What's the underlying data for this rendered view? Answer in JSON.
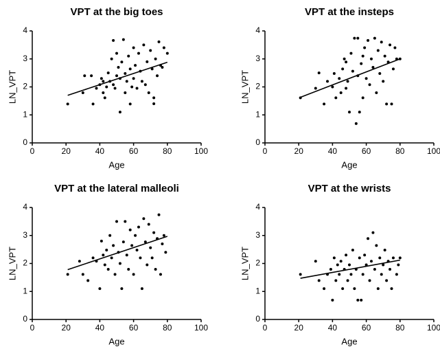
{
  "chart_data": [
    {
      "type": "scatter",
      "title": "VPT at the big toes",
      "xlabel": "Age",
      "ylabel": "LN_VPT",
      "xlim": [
        0,
        100
      ],
      "ylim": [
        0,
        4
      ],
      "xticks": [
        0,
        20,
        40,
        60,
        80,
        100
      ],
      "yticks": [
        0,
        1,
        2,
        3,
        4
      ],
      "color": "#000000",
      "series": [
        {
          "x": [
            21,
            30,
            31,
            35,
            36,
            38,
            40,
            41,
            42,
            42,
            43,
            44,
            45,
            46,
            47,
            48,
            48,
            49,
            50,
            50,
            51,
            52,
            52,
            53,
            54,
            55,
            55,
            56,
            57,
            58,
            58,
            59,
            60,
            60,
            61,
            62,
            63,
            64,
            65,
            66,
            67,
            68,
            69,
            70,
            71,
            72,
            73,
            74,
            75,
            76,
            77,
            78,
            80,
            72
          ],
          "values": [
            1.39,
            1.79,
            2.4,
            2.4,
            1.39,
            1.95,
            2.08,
            2.3,
            2.2,
            1.79,
            1.61,
            2.0,
            2.5,
            2.2,
            3.0,
            3.66,
            2.08,
            1.95,
            2.4,
            3.2,
            2.7,
            1.1,
            2.3,
            2.89,
            3.69,
            2.48,
            1.79,
            2.2,
            3.1,
            2.64,
            1.39,
            2.0,
            3.4,
            2.3,
            2.77,
            1.95,
            3.2,
            2.56,
            2.2,
            3.5,
            2.08,
            2.9,
            1.79,
            3.3,
            2.64,
            1.61,
            3.0,
            2.4,
            3.61,
            2.77,
            2.7,
            3.4,
            3.2,
            1.4
          ]
        }
      ],
      "fit": {
        "x": [
          21,
          80
        ],
        "values": [
          1.7,
          2.88
        ]
      }
    },
    {
      "type": "scatter",
      "title": "VPT at the insteps",
      "xlabel": "Age",
      "ylabel": "LN_VPT",
      "xlim": [
        0,
        100
      ],
      "ylim": [
        0,
        4
      ],
      "xticks": [
        0,
        20,
        40,
        60,
        80,
        100
      ],
      "yticks": [
        0,
        1,
        2,
        3,
        4
      ],
      "color": "#000000",
      "series": [
        {
          "x": [
            21,
            30,
            32,
            35,
            37,
            40,
            41,
            42,
            44,
            45,
            46,
            47,
            48,
            49,
            50,
            51,
            52,
            53,
            54,
            55,
            55,
            56,
            57,
            58,
            59,
            60,
            61,
            62,
            63,
            64,
            65,
            66,
            67,
            68,
            69,
            70,
            71,
            72,
            73,
            74,
            75,
            76,
            77,
            78,
            80,
            58,
            48
          ],
          "values": [
            1.61,
            1.95,
            2.5,
            1.39,
            2.2,
            2.0,
            2.48,
            1.61,
            2.3,
            1.79,
            2.64,
            3.0,
            1.95,
            2.2,
            1.1,
            3.2,
            2.56,
            3.74,
            0.69,
            2.4,
            3.74,
            1.1,
            2.83,
            1.61,
            3.4,
            2.3,
            3.66,
            2.08,
            3.0,
            2.7,
            3.74,
            1.79,
            3.3,
            2.48,
            3.6,
            2.2,
            3.1,
            1.39,
            2.89,
            3.5,
            1.39,
            2.64,
            3.4,
            3.0,
            3.0,
            3.1,
            2.89
          ]
        }
      ],
      "fit": {
        "x": [
          21,
          80
        ],
        "values": [
          1.63,
          3.0
        ]
      }
    },
    {
      "type": "scatter",
      "title": "VPT at the lateral malleoli",
      "xlabel": "Age",
      "ylabel": "LN_VPT",
      "xlim": [
        0,
        100
      ],
      "ylim": [
        0,
        4
      ],
      "xticks": [
        0,
        20,
        40,
        60,
        80,
        100
      ],
      "yticks": [
        0,
        1,
        2,
        3,
        4
      ],
      "color": "#000000",
      "series": [
        {
          "x": [
            21,
            28,
            30,
            33,
            36,
            38,
            40,
            41,
            42,
            43,
            44,
            45,
            46,
            47,
            48,
            49,
            50,
            51,
            52,
            53,
            54,
            55,
            56,
            57,
            58,
            59,
            60,
            61,
            62,
            63,
            64,
            65,
            66,
            67,
            68,
            69,
            70,
            71,
            72,
            73,
            74,
            75,
            76,
            77,
            78,
            79
          ],
          "values": [
            1.61,
            2.08,
            1.61,
            1.39,
            2.2,
            2.08,
            1.1,
            2.8,
            2.3,
            1.95,
            2.48,
            1.79,
            3.0,
            2.2,
            2.64,
            1.61,
            3.5,
            2.4,
            2.0,
            1.1,
            2.77,
            3.5,
            2.3,
            1.79,
            3.2,
            2.64,
            1.61,
            3.0,
            2.48,
            3.3,
            2.2,
            1.1,
            3.6,
            2.77,
            1.95,
            3.4,
            2.56,
            2.2,
            3.1,
            1.79,
            2.89,
            3.74,
            1.61,
            2.7,
            3.0,
            2.4
          ]
        }
      ],
      "fit": {
        "x": [
          21,
          80
        ],
        "values": [
          1.78,
          2.97
        ]
      }
    },
    {
      "type": "scatter",
      "title": "VPT at the wrists",
      "xlabel": "Age",
      "ylabel": "LN_VPT",
      "xlim": [
        0,
        100
      ],
      "ylim": [
        0,
        4
      ],
      "xticks": [
        0,
        20,
        40,
        60,
        80,
        100
      ],
      "yticks": [
        0,
        1,
        2,
        3,
        4
      ],
      "color": "#000000",
      "series": [
        {
          "x": [
            21,
            30,
            32,
            35,
            37,
            39,
            40,
            41,
            42,
            43,
            44,
            45,
            46,
            47,
            48,
            49,
            50,
            51,
            52,
            53,
            54,
            55,
            56,
            57,
            58,
            59,
            60,
            61,
            62,
            63,
            64,
            65,
            66,
            67,
            68,
            69,
            70,
            71,
            72,
            73,
            74,
            75,
            76,
            78,
            80,
            79
          ],
          "values": [
            1.61,
            2.08,
            1.39,
            1.1,
            1.61,
            1.79,
            0.69,
            2.2,
            1.39,
            1.95,
            1.61,
            2.08,
            1.1,
            1.79,
            2.3,
            1.39,
            1.95,
            1.61,
            2.48,
            1.1,
            1.79,
            0.69,
            2.2,
            0.69,
            1.61,
            2.3,
            1.95,
            2.89,
            1.39,
            2.08,
            3.1,
            1.79,
            2.64,
            1.1,
            2.2,
            1.61,
            1.95,
            2.48,
            1.39,
            2.08,
            1.79,
            1.1,
            2.2,
            1.61,
            2.2,
            1.95
          ]
        }
      ],
      "fit": {
        "x": [
          21,
          80
        ],
        "values": [
          1.47,
          2.12
        ]
      }
    }
  ]
}
